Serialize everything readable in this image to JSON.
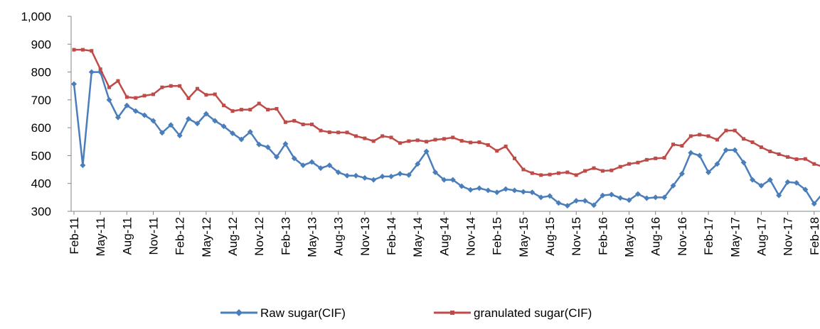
{
  "chart_data": {
    "type": "line",
    "categories": [
      "Feb-11",
      null,
      null,
      "May-11",
      null,
      null,
      "Aug-11",
      null,
      null,
      "Nov-11",
      null,
      null,
      "Feb-12",
      null,
      null,
      "May-12",
      null,
      null,
      "Aug-12",
      null,
      null,
      "Nov-12",
      null,
      null,
      "Feb-13",
      null,
      null,
      "May-13",
      null,
      null,
      "Aug-13",
      null,
      null,
      "Nov-13",
      null,
      null,
      "Feb-14",
      null,
      null,
      "May-14",
      null,
      null,
      "Aug-14",
      null,
      null,
      "Nov-14",
      null,
      null,
      "Feb-15",
      null,
      null,
      "May-15",
      null,
      null,
      "Aug-15",
      null,
      null,
      "Nov-15",
      null,
      null,
      "Feb-16",
      null,
      null,
      "May-16",
      null,
      null,
      "Aug-16",
      null,
      null,
      "Nov-16",
      null,
      null,
      "Feb-17",
      null,
      null,
      "May-17",
      null,
      null,
      "Aug-17",
      null,
      null,
      "Nov-17",
      null,
      null,
      "Feb-18",
      null
    ],
    "series": [
      {
        "name": "Raw sugar(CIF)",
        "color": "#4a7ebb",
        "marker": "diamond",
        "values": [
          757,
          465,
          800,
          800,
          700,
          637,
          680,
          660,
          645,
          625,
          582,
          610,
          572,
          632,
          615,
          650,
          625,
          605,
          580,
          558,
          585,
          540,
          530,
          495,
          542,
          490,
          465,
          477,
          455,
          465,
          440,
          428,
          428,
          420,
          413,
          425,
          425,
          435,
          430,
          470,
          515,
          440,
          413,
          413,
          390,
          377,
          383,
          375,
          368,
          380,
          375,
          370,
          368,
          350,
          355,
          330,
          320,
          338,
          338,
          322,
          357,
          360,
          348,
          340,
          362,
          347,
          350,
          350,
          392,
          435,
          510,
          500,
          440,
          470,
          520,
          520,
          475,
          413,
          392,
          413,
          357,
          405,
          402,
          378,
          327,
          365
        ]
      },
      {
        "name": "granulated sugar(CIF)",
        "color": "#be4b48",
        "marker": "square",
        "values": [
          880,
          880,
          876,
          810,
          745,
          768,
          710,
          707,
          715,
          720,
          745,
          750,
          750,
          706,
          740,
          718,
          720,
          680,
          660,
          665,
          665,
          687,
          665,
          668,
          620,
          625,
          612,
          612,
          590,
          584,
          583,
          583,
          570,
          562,
          552,
          570,
          565,
          545,
          552,
          555,
          550,
          557,
          560,
          565,
          553,
          547,
          548,
          538,
          517,
          533,
          490,
          450,
          437,
          430,
          432,
          437,
          440,
          430,
          445,
          455,
          445,
          447,
          460,
          470,
          475,
          485,
          490,
          492,
          540,
          535,
          570,
          575,
          570,
          557,
          590,
          590,
          560,
          548,
          530,
          515,
          505,
          495,
          487,
          488,
          470,
          460
        ]
      }
    ],
    "ylim": [
      300,
      1000
    ],
    "yticks": [
      300,
      400,
      500,
      600,
      700,
      800,
      900,
      {
        "value": 1000,
        "label": "1,000"
      }
    ],
    "legend": "bottom"
  }
}
